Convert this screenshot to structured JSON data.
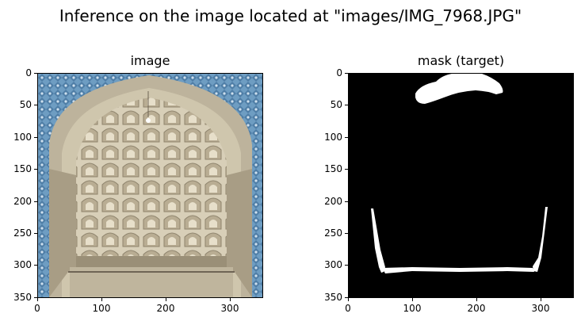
{
  "figure": {
    "suptitle": "Inference on the image located at \"images/IMG_7968.JPG\""
  },
  "panels": [
    {
      "id": "image",
      "title": "image",
      "content": "photo of a muqarnas vaulted archway (ornate stone niche) framed by blue tilework",
      "x_ticks": [
        "0",
        "100",
        "200",
        "300"
      ],
      "y_ticks": [
        "0",
        "50",
        "100",
        "150",
        "200",
        "250",
        "300",
        "350"
      ]
    },
    {
      "id": "mask",
      "title": "mask (target)",
      "content": "binary segmentation mask: black background with white regions",
      "x_ticks": [
        "0",
        "100",
        "200",
        "300"
      ],
      "y_ticks": [
        "0",
        "50",
        "100",
        "150",
        "200",
        "250",
        "300",
        "350"
      ]
    }
  ],
  "colors": {
    "mask_background": "#000000",
    "mask_foreground": "#ffffff",
    "tile_blue": "#5f8fb5",
    "stone": "#c9bfa8"
  }
}
